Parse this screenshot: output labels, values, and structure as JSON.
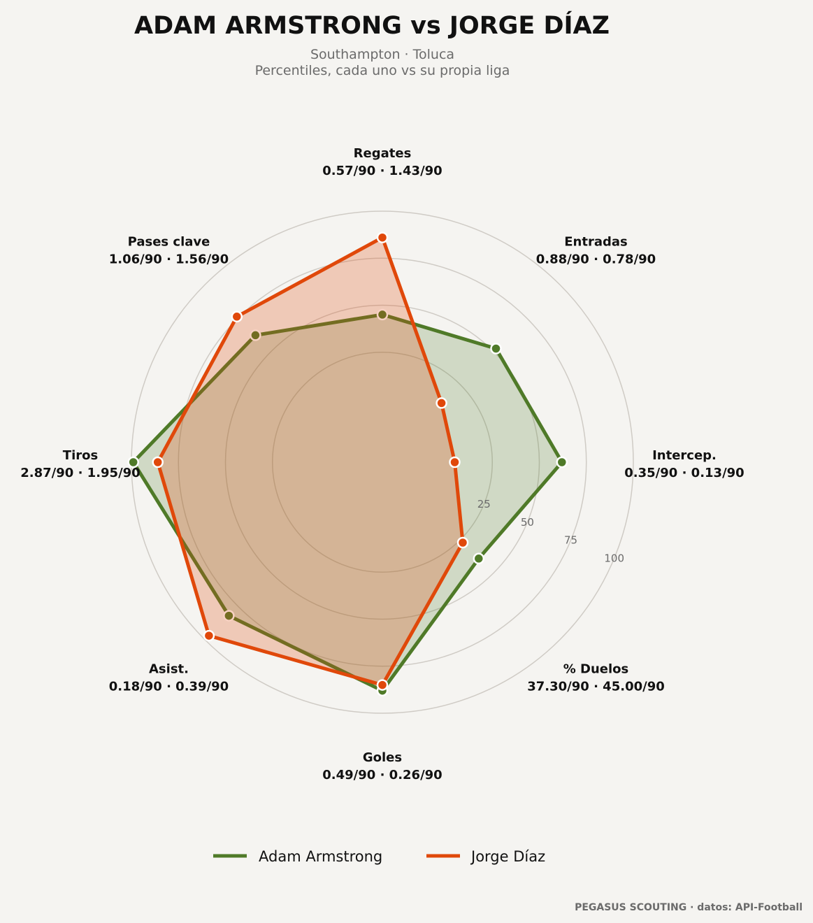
{
  "chart_data": {
    "type": "radar",
    "title": "ADAM ARMSTRONG  vs  JORGE DÍAZ",
    "subtitle_line1": "Southampton · Toluca",
    "subtitle_line2": "Percentiles, cada uno vs su propia liga",
    "range": [
      0,
      100
    ],
    "rings": [
      25,
      50,
      75,
      100
    ],
    "ring_labels": [
      "25",
      "50",
      "75",
      "100"
    ],
    "axes": [
      {
        "name": "Regates",
        "values": "0.57/90 · 1.43/90"
      },
      {
        "name": "Entradas",
        "values": "0.88/90 · 0.78/90"
      },
      {
        "name": "Intercep.",
        "values": "0.35/90 · 0.13/90"
      },
      {
        "name": "% Duelos",
        "values": "37.30/90 · 45.00/90"
      },
      {
        "name": "Goles",
        "values": "0.49/90 · 0.26/90"
      },
      {
        "name": "Asist.",
        "values": "0.18/90 · 0.39/90"
      },
      {
        "name": "Tiros",
        "values": "2.87/90 · 1.95/90"
      },
      {
        "name": "Pases clave",
        "values": "1.06/90 · 1.56/90"
      }
    ],
    "series": [
      {
        "name": "Adam Armstrong",
        "color": "#4f7a28",
        "fill": "rgba(79,122,40,0.22)",
        "values": [
          45,
          52,
          62,
          39,
          88,
          82,
          99,
          62
        ]
      },
      {
        "name": "Jorge Díaz",
        "color": "#e0480a",
        "fill": "rgba(224,72,10,0.25)",
        "values": [
          86,
          11,
          5,
          27,
          85,
          97,
          86,
          76
        ]
      }
    ],
    "legend_position": "bottom-center"
  },
  "footer": "PEGASUS SCOUTING · datos: API-Football"
}
